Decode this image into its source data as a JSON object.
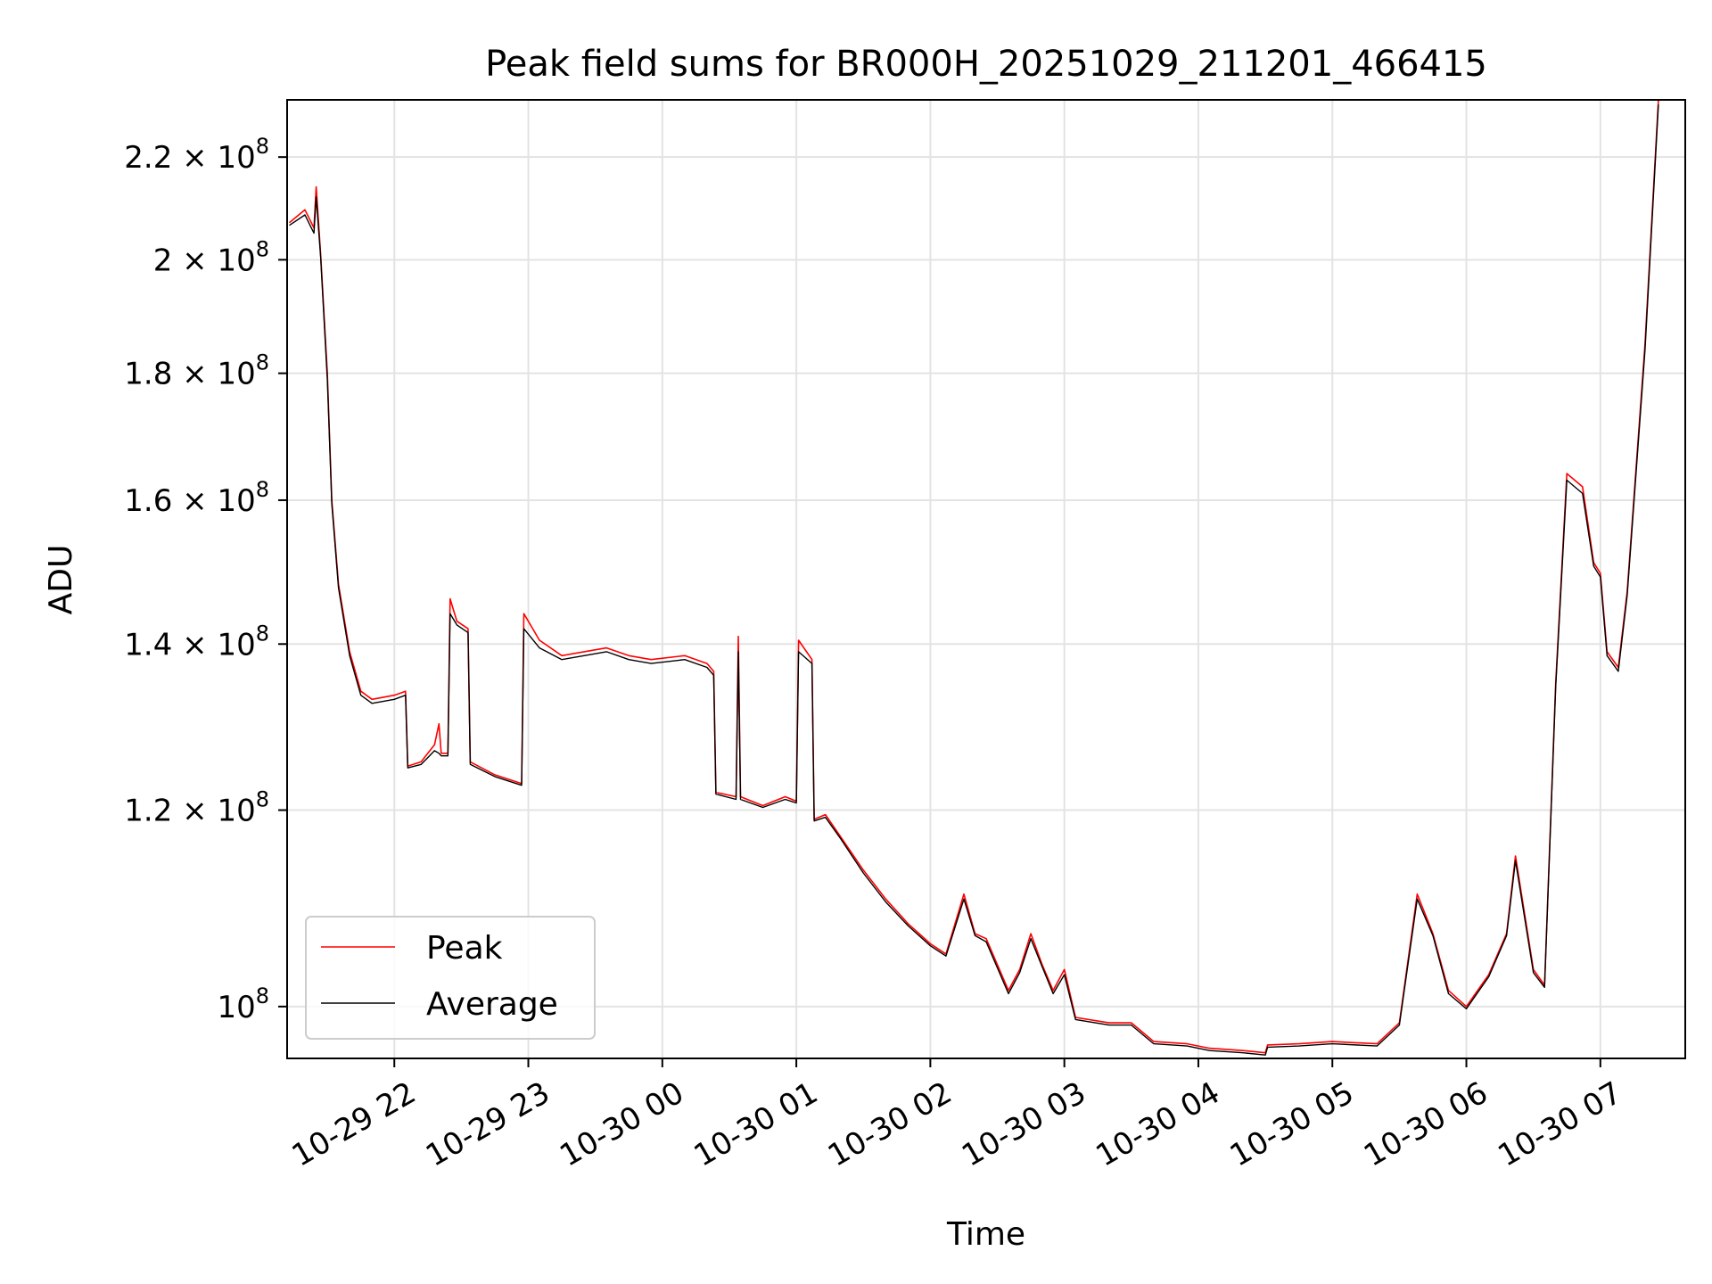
{
  "chart_data": {
    "type": "line",
    "title": "Peak field sums for BR000H_20251029_211201_466415",
    "xlabel": "Time",
    "ylabel": "ADU",
    "yscale": "log",
    "grid": true,
    "legend_position": "lower-left",
    "x_ticks": [
      "10-29 22",
      "10-29 23",
      "10-30 00",
      "10-30 01",
      "10-30 02",
      "10-30 03",
      "10-30 04",
      "10-30 05",
      "10-30 06",
      "10-30 07"
    ],
    "y_ticks": [
      {
        "value": 100000000,
        "mantissa": "",
        "exp": "8"
      },
      {
        "value": 120000000,
        "mantissa": "1.2",
        "exp": "8"
      },
      {
        "value": 140000000,
        "mantissa": "1.4",
        "exp": "8"
      },
      {
        "value": 160000000,
        "mantissa": "1.6",
        "exp": "8"
      },
      {
        "value": 180000000,
        "mantissa": "1.8",
        "exp": "8"
      },
      {
        "value": 200000000,
        "mantissa": "2",
        "exp": "8"
      },
      {
        "value": 220000000,
        "mantissa": "2.2",
        "exp": "8"
      }
    ],
    "xlim": [
      "2025-10-29 21:12",
      "2025-10-30 07:38"
    ],
    "ylim": [
      95300000,
      232000000
    ],
    "series": [
      {
        "name": "Peak",
        "color": "#ff0000",
        "points": [
          [
            "2025-10-29 21:13",
            207000000
          ],
          [
            "2025-10-29 21:20",
            209500000
          ],
          [
            "2025-10-29 21:24",
            206000000
          ],
          [
            "2025-10-29 21:25",
            214000000
          ],
          [
            "2025-10-29 21:27",
            201000000
          ],
          [
            "2025-10-29 21:30",
            180000000
          ],
          [
            "2025-10-29 21:32",
            160000000
          ],
          [
            "2025-10-29 21:35",
            148000000
          ],
          [
            "2025-10-29 21:40",
            139000000
          ],
          [
            "2025-10-29 21:45",
            134000000
          ],
          [
            "2025-10-29 21:50",
            133000000
          ],
          [
            "2025-10-29 22:00",
            133500000
          ],
          [
            "2025-10-29 22:05",
            134000000
          ],
          [
            "2025-10-29 22:06",
            125000000
          ],
          [
            "2025-10-29 22:12",
            125500000
          ],
          [
            "2025-10-29 22:15",
            126500000
          ],
          [
            "2025-10-29 22:18",
            127500000
          ],
          [
            "2025-10-29 22:20",
            130000000
          ],
          [
            "2025-10-29 22:21",
            126500000
          ],
          [
            "2025-10-29 22:24",
            126500000
          ],
          [
            "2025-10-29 22:25",
            146000000
          ],
          [
            "2025-10-29 22:28",
            143000000
          ],
          [
            "2025-10-29 22:33",
            142000000
          ],
          [
            "2025-10-29 22:34",
            125500000
          ],
          [
            "2025-10-29 22:45",
            124000000
          ],
          [
            "2025-10-29 22:57",
            123000000
          ],
          [
            "2025-10-29 22:58",
            144000000
          ],
          [
            "2025-10-29 23:05",
            140500000
          ],
          [
            "2025-10-29 23:15",
            138500000
          ],
          [
            "2025-10-29 23:25",
            139000000
          ],
          [
            "2025-10-29 23:35",
            139500000
          ],
          [
            "2025-10-29 23:45",
            138500000
          ],
          [
            "2025-10-29 23:55",
            138000000
          ],
          [
            "2025-10-30 00:10",
            138500000
          ],
          [
            "2025-10-30 00:20",
            137500000
          ],
          [
            "2025-10-30 00:23",
            136500000
          ],
          [
            "2025-10-30 00:24",
            122000000
          ],
          [
            "2025-10-30 00:33",
            121500000
          ],
          [
            "2025-10-30 00:34",
            141000000
          ],
          [
            "2025-10-30 00:35",
            121500000
          ],
          [
            "2025-10-30 00:45",
            120500000
          ],
          [
            "2025-10-30 00:55",
            121500000
          ],
          [
            "2025-10-30 01:00",
            121000000
          ],
          [
            "2025-10-30 01:01",
            140500000
          ],
          [
            "2025-10-30 01:07",
            138000000
          ],
          [
            "2025-10-30 01:08",
            119000000
          ],
          [
            "2025-10-30 01:13",
            119500000
          ],
          [
            "2025-10-30 01:20",
            117000000
          ],
          [
            "2025-10-30 01:30",
            113500000
          ],
          [
            "2025-10-30 01:40",
            110500000
          ],
          [
            "2025-10-30 01:50",
            108000000
          ],
          [
            "2025-10-30 02:00",
            106000000
          ],
          [
            "2025-10-30 02:07",
            105000000
          ],
          [
            "2025-10-30 02:15",
            111000000
          ],
          [
            "2025-10-30 02:20",
            107000000
          ],
          [
            "2025-10-30 02:25",
            106500000
          ],
          [
            "2025-10-30 02:35",
            101500000
          ],
          [
            "2025-10-30 02:40",
            103500000
          ],
          [
            "2025-10-30 02:45",
            107000000
          ],
          [
            "2025-10-30 02:50",
            104000000
          ],
          [
            "2025-10-30 02:55",
            101500000
          ],
          [
            "2025-10-30 03:00",
            103500000
          ],
          [
            "2025-10-30 03:05",
            99000000
          ],
          [
            "2025-10-30 03:20",
            98500000
          ],
          [
            "2025-10-30 03:30",
            98500000
          ],
          [
            "2025-10-30 03:40",
            96800000
          ],
          [
            "2025-10-30 03:55",
            96600000
          ],
          [
            "2025-10-30 04:05",
            96200000
          ],
          [
            "2025-10-30 04:20",
            96000000
          ],
          [
            "2025-10-30 04:30",
            95800000
          ],
          [
            "2025-10-30 04:31",
            96500000
          ],
          [
            "2025-10-30 04:45",
            96600000
          ],
          [
            "2025-10-30 05:00",
            96800000
          ],
          [
            "2025-10-30 05:20",
            96600000
          ],
          [
            "2025-10-30 05:30",
            98500000
          ],
          [
            "2025-10-30 05:38",
            111000000
          ],
          [
            "2025-10-30 05:45",
            107000000
          ],
          [
            "2025-10-30 05:52",
            101500000
          ],
          [
            "2025-10-30 06:00",
            100000000
          ],
          [
            "2025-10-30 06:10",
            103000000
          ],
          [
            "2025-10-30 06:18",
            107000000
          ],
          [
            "2025-10-30 06:22",
            115000000
          ],
          [
            "2025-10-30 06:30",
            103500000
          ],
          [
            "2025-10-30 06:35",
            102000000
          ],
          [
            "2025-10-30 06:40",
            135000000
          ],
          [
            "2025-10-30 06:45",
            164000000
          ],
          [
            "2025-10-30 06:52",
            162000000
          ],
          [
            "2025-10-30 06:57",
            151000000
          ],
          [
            "2025-10-30 07:00",
            149500000
          ],
          [
            "2025-10-30 07:03",
            139000000
          ],
          [
            "2025-10-30 07:08",
            137000000
          ],
          [
            "2025-10-30 07:12",
            147000000
          ],
          [
            "2025-10-30 07:20",
            185000000
          ],
          [
            "2025-10-30 07:26",
            232000000
          ]
        ]
      },
      {
        "name": "Average",
        "color": "#000000",
        "points": [
          [
            "2025-10-29 21:13",
            206500000
          ],
          [
            "2025-10-29 21:20",
            208500000
          ],
          [
            "2025-10-29 21:24",
            205000000
          ],
          [
            "2025-10-29 21:25",
            212000000
          ],
          [
            "2025-10-29 21:27",
            200500000
          ],
          [
            "2025-10-29 21:30",
            179000000
          ],
          [
            "2025-10-29 21:32",
            159500000
          ],
          [
            "2025-10-29 21:35",
            147500000
          ],
          [
            "2025-10-29 21:40",
            138500000
          ],
          [
            "2025-10-29 21:45",
            133500000
          ],
          [
            "2025-10-29 21:50",
            132500000
          ],
          [
            "2025-10-29 22:00",
            133000000
          ],
          [
            "2025-10-29 22:05",
            133500000
          ],
          [
            "2025-10-29 22:06",
            124800000
          ],
          [
            "2025-10-29 22:12",
            125200000
          ],
          [
            "2025-10-29 22:15",
            126000000
          ],
          [
            "2025-10-29 22:18",
            126800000
          ],
          [
            "2025-10-29 22:20",
            126500000
          ],
          [
            "2025-10-29 22:21",
            126200000
          ],
          [
            "2025-10-29 22:24",
            126200000
          ],
          [
            "2025-10-29 22:25",
            144000000
          ],
          [
            "2025-10-29 22:28",
            142500000
          ],
          [
            "2025-10-29 22:33",
            141500000
          ],
          [
            "2025-10-29 22:34",
            125200000
          ],
          [
            "2025-10-29 22:45",
            123800000
          ],
          [
            "2025-10-29 22:57",
            122800000
          ],
          [
            "2025-10-29 22:58",
            142000000
          ],
          [
            "2025-10-29 23:05",
            139500000
          ],
          [
            "2025-10-29 23:15",
            138000000
          ],
          [
            "2025-10-29 23:25",
            138500000
          ],
          [
            "2025-10-29 23:35",
            139000000
          ],
          [
            "2025-10-29 23:45",
            138000000
          ],
          [
            "2025-10-29 23:55",
            137500000
          ],
          [
            "2025-10-30 00:10",
            138000000
          ],
          [
            "2025-10-30 00:20",
            137000000
          ],
          [
            "2025-10-30 00:23",
            136000000
          ],
          [
            "2025-10-30 00:24",
            121800000
          ],
          [
            "2025-10-30 00:33",
            121200000
          ],
          [
            "2025-10-30 00:34",
            139000000
          ],
          [
            "2025-10-30 00:35",
            121200000
          ],
          [
            "2025-10-30 00:45",
            120300000
          ],
          [
            "2025-10-30 00:55",
            121200000
          ],
          [
            "2025-10-30 01:00",
            120800000
          ],
          [
            "2025-10-30 01:01",
            139000000
          ],
          [
            "2025-10-30 01:07",
            137500000
          ],
          [
            "2025-10-30 01:08",
            118800000
          ],
          [
            "2025-10-30 01:13",
            119200000
          ],
          [
            "2025-10-30 01:20",
            116800000
          ],
          [
            "2025-10-30 01:30",
            113200000
          ],
          [
            "2025-10-30 01:40",
            110200000
          ],
          [
            "2025-10-30 01:50",
            107800000
          ],
          [
            "2025-10-30 02:00",
            105800000
          ],
          [
            "2025-10-30 02:07",
            104800000
          ],
          [
            "2025-10-30 02:15",
            110500000
          ],
          [
            "2025-10-30 02:20",
            106800000
          ],
          [
            "2025-10-30 02:25",
            106200000
          ],
          [
            "2025-10-30 02:35",
            101200000
          ],
          [
            "2025-10-30 02:40",
            103200000
          ],
          [
            "2025-10-30 02:45",
            106500000
          ],
          [
            "2025-10-30 02:50",
            103800000
          ],
          [
            "2025-10-30 02:55",
            101200000
          ],
          [
            "2025-10-30 03:00",
            103000000
          ],
          [
            "2025-10-30 03:05",
            98800000
          ],
          [
            "2025-10-30 03:20",
            98300000
          ],
          [
            "2025-10-30 03:30",
            98300000
          ],
          [
            "2025-10-30 03:40",
            96600000
          ],
          [
            "2025-10-30 03:55",
            96400000
          ],
          [
            "2025-10-30 04:05",
            96000000
          ],
          [
            "2025-10-30 04:20",
            95800000
          ],
          [
            "2025-10-30 04:30",
            95600000
          ],
          [
            "2025-10-30 04:31",
            96300000
          ],
          [
            "2025-10-30 04:45",
            96400000
          ],
          [
            "2025-10-30 05:00",
            96600000
          ],
          [
            "2025-10-30 05:20",
            96400000
          ],
          [
            "2025-10-30 05:30",
            98300000
          ],
          [
            "2025-10-30 05:38",
            110500000
          ],
          [
            "2025-10-30 05:45",
            106800000
          ],
          [
            "2025-10-30 05:52",
            101200000
          ],
          [
            "2025-10-30 06:00",
            99800000
          ],
          [
            "2025-10-30 06:10",
            102800000
          ],
          [
            "2025-10-30 06:18",
            106800000
          ],
          [
            "2025-10-30 06:22",
            114500000
          ],
          [
            "2025-10-30 06:30",
            103200000
          ],
          [
            "2025-10-30 06:35",
            101800000
          ],
          [
            "2025-10-30 06:40",
            134500000
          ],
          [
            "2025-10-30 06:45",
            163000000
          ],
          [
            "2025-10-30 06:52",
            161000000
          ],
          [
            "2025-10-30 06:57",
            150500000
          ],
          [
            "2025-10-30 07:00",
            149000000
          ],
          [
            "2025-10-30 07:03",
            138500000
          ],
          [
            "2025-10-30 07:08",
            136500000
          ],
          [
            "2025-10-30 07:12",
            146500000
          ],
          [
            "2025-10-30 07:20",
            184000000
          ],
          [
            "2025-10-30 07:26",
            231000000
          ]
        ]
      }
    ]
  }
}
